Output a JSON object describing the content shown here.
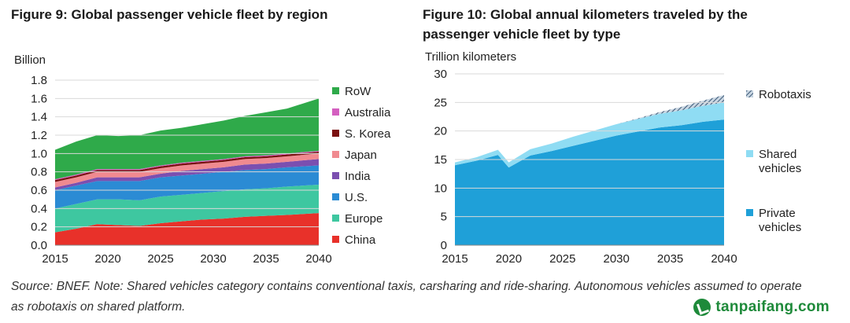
{
  "figures": {
    "fig9_title": "Figure 9:  Global passenger vehicle fleet by region",
    "fig10_title": "Figure 10: Global annual kilometers traveled by the passenger vehicle fleet by type",
    "fig9_unit": "Billion",
    "fig10_unit": "Trillion kilometers"
  },
  "source": "Source: BNEF. Note: Shared vehicles category contains conventional taxis, carsharing and ride-sharing. Autonomous vehicles assumed to operate as robotaxis on shared platform.",
  "logo": {
    "text": "tanpaifang.com",
    "icon": "leaf-check-icon",
    "color": "#1e8a3a"
  },
  "chart_data": [
    {
      "type": "area",
      "stacked": true,
      "title": "Figure 9:  Global passenger vehicle fleet by region",
      "ylabel": "Billion",
      "x": [
        2015,
        2017,
        2019,
        2021,
        2023,
        2025,
        2027,
        2029,
        2031,
        2033,
        2035,
        2037,
        2040
      ],
      "xticks": [
        2015,
        2020,
        2025,
        2030,
        2035,
        2040
      ],
      "yticks": [
        "0.0",
        "0.2",
        "0.4",
        "0.6",
        "0.8",
        "1.0",
        "1.2",
        "1.4",
        "1.6",
        "1.8"
      ],
      "ylim": [
        0,
        1.8
      ],
      "legend_position": "right",
      "series": [
        {
          "name": "China",
          "color": "#e8312a",
          "values": [
            0.14,
            0.18,
            0.23,
            0.22,
            0.21,
            0.24,
            0.26,
            0.28,
            0.29,
            0.31,
            0.32,
            0.33,
            0.35
          ]
        },
        {
          "name": "Europe",
          "color": "#3ec7a0",
          "values": [
            0.26,
            0.27,
            0.27,
            0.28,
            0.28,
            0.29,
            0.29,
            0.29,
            0.3,
            0.3,
            0.3,
            0.31,
            0.31
          ]
        },
        {
          "name": "U.S.",
          "color": "#2b8bd4",
          "values": [
            0.2,
            0.2,
            0.2,
            0.2,
            0.21,
            0.21,
            0.21,
            0.21,
            0.21,
            0.21,
            0.21,
            0.21,
            0.21
          ]
        },
        {
          "name": "India",
          "color": "#7b4fb0",
          "values": [
            0.03,
            0.03,
            0.04,
            0.04,
            0.04,
            0.04,
            0.05,
            0.05,
            0.05,
            0.06,
            0.06,
            0.06,
            0.07
          ]
        },
        {
          "name": "Japan",
          "color": "#f08a90",
          "values": [
            0.06,
            0.06,
            0.06,
            0.06,
            0.06,
            0.06,
            0.06,
            0.06,
            0.06,
            0.06,
            0.06,
            0.06,
            0.06
          ]
        },
        {
          "name": "S. Korea",
          "color": "#7a1010",
          "values": [
            0.02,
            0.02,
            0.02,
            0.02,
            0.02,
            0.02,
            0.02,
            0.02,
            0.02,
            0.02,
            0.02,
            0.02,
            0.02
          ]
        },
        {
          "name": "Australia",
          "color": "#d45fc0",
          "values": [
            0.01,
            0.01,
            0.01,
            0.01,
            0.01,
            0.01,
            0.01,
            0.01,
            0.01,
            0.01,
            0.01,
            0.01,
            0.01
          ]
        },
        {
          "name": "RoW",
          "color": "#2faa4a",
          "values": [
            0.32,
            0.36,
            0.37,
            0.36,
            0.37,
            0.38,
            0.38,
            0.4,
            0.42,
            0.44,
            0.47,
            0.49,
            0.57
          ]
        }
      ]
    },
    {
      "type": "area",
      "stacked": true,
      "title": "Figure 10: Global annual kilometers traveled by the passenger vehicle fleet by type",
      "ylabel": "Trillion kilometers",
      "x": [
        2015,
        2017,
        2019,
        2020,
        2022,
        2024,
        2026,
        2028,
        2030,
        2032,
        2034,
        2036,
        2038,
        2040
      ],
      "xticks": [
        2015,
        2020,
        2025,
        2030,
        2035,
        2040
      ],
      "yticks": [
        "0",
        "5",
        "10",
        "15",
        "20",
        "25",
        "30"
      ],
      "ylim": [
        0,
        30
      ],
      "legend_position": "right",
      "series": [
        {
          "name": "Private vehicles",
          "color": "#1fa0d8",
          "values": [
            14.0,
            14.8,
            15.8,
            13.6,
            15.7,
            16.5,
            17.4,
            18.3,
            19.2,
            19.9,
            20.6,
            21.0,
            21.6,
            22.0
          ]
        },
        {
          "name": "Shared vehicles",
          "color": "#8fdcf3",
          "values": [
            0.5,
            0.6,
            0.9,
            0.9,
            1.1,
            1.3,
            1.6,
            1.8,
            2.0,
            2.2,
            2.4,
            2.6,
            2.8,
            3.0
          ]
        },
        {
          "name": "Robotaxis",
          "color": "#5a7a9a",
          "values": [
            0,
            0,
            0,
            0,
            0,
            0,
            0,
            0,
            0,
            0.1,
            0.3,
            0.6,
            0.9,
            1.3
          ]
        }
      ]
    }
  ]
}
